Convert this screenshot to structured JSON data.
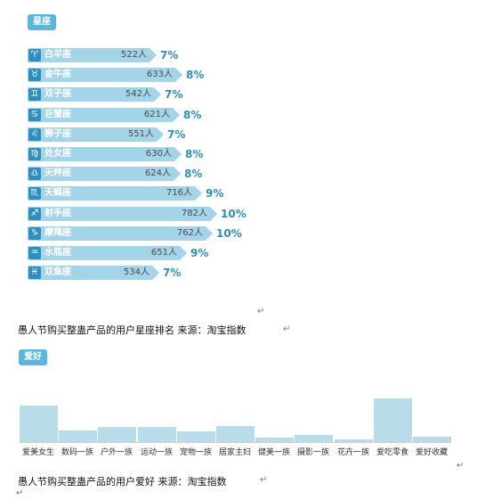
{
  "zodiac_tag": "星座",
  "hobby_tag": "爱好",
  "caption1": "愚人节购买整蛊产品的用户星座排名 来源：淘宝指数",
  "caption2": "愚人节购买整蛊产品的用户爱好 来源：淘宝指数",
  "return_mark": "↵",
  "chart_data": [
    {
      "type": "bar",
      "orientation": "horizontal",
      "categories": [
        "白羊座",
        "金牛座",
        "双子座",
        "巨蟹座",
        "狮子座",
        "处女座",
        "天秤座",
        "天蝎座",
        "射手座",
        "摩羯座",
        "水瓶座",
        "双鱼座"
      ],
      "icons": [
        "♈",
        "♉",
        "♊",
        "♋",
        "♌",
        "♍",
        "♎",
        "♏",
        "♐",
        "♑",
        "♒",
        "♓"
      ],
      "values": [
        522,
        633,
        542,
        621,
        551,
        630,
        624,
        716,
        782,
        762,
        651,
        534
      ],
      "count_labels": [
        "522人",
        "633人",
        "542人",
        "621人",
        "551人",
        "630人",
        "624人",
        "716人",
        "782人",
        "762人",
        "651人",
        "534人"
      ],
      "percent_labels": [
        "7%",
        "8%",
        "7%",
        "8%",
        "7%",
        "8%",
        "8%",
        "9%",
        "10%",
        "10%",
        "9%",
        "7%"
      ],
      "colors": {
        "bar": "#a4d4e8",
        "icon": "#2e8ec0",
        "percent": "#2e8ec0"
      }
    },
    {
      "type": "bar",
      "categories": [
        "爱美女生",
        "数码一族",
        "户外一族",
        "运动一族",
        "宠物一族",
        "居家主妇",
        "健美一族",
        "摄影一族",
        "花卉一族",
        "爱吃零食",
        "爱好收藏"
      ],
      "values": [
        41,
        13,
        17,
        17,
        12,
        18,
        5,
        8,
        3,
        49,
        6
      ],
      "ylim": [
        0,
        55
      ],
      "colors": {
        "bar": "#b9dceb"
      }
    }
  ]
}
